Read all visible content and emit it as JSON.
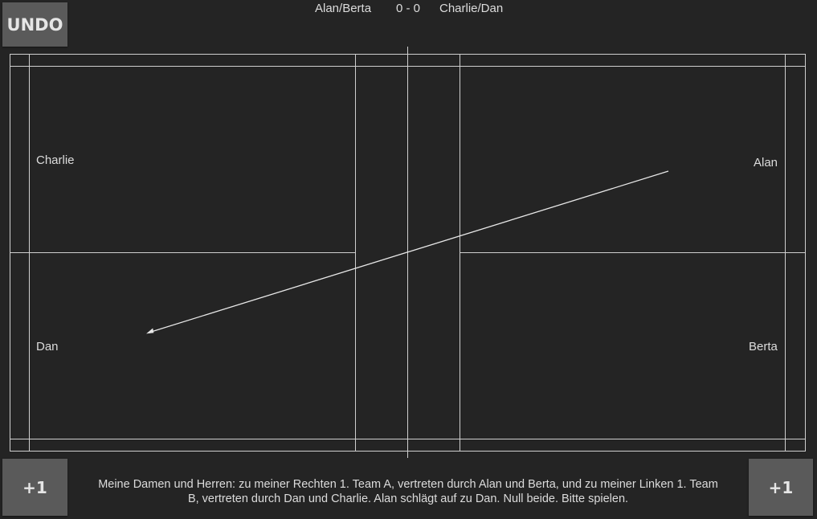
{
  "toolbar": {
    "undo_label": "UNDO"
  },
  "scoreboard": {
    "team_a": "Alan/Berta",
    "score": "0 - 0",
    "team_b": "Charlie/Dan"
  },
  "players": {
    "top_left": "Charlie",
    "bottom_left": "Dan",
    "top_right": "Alan",
    "bottom_right": "Berta"
  },
  "scoring": {
    "left_plus_label": "+1",
    "right_plus_label": "+1"
  },
  "announcement": "Meine Damen und Herren: zu meiner Rechten 1. Team A, vertreten durch Alan und Berta, und zu meiner Linken 1. Team B, vertreten durch Dan und Charlie. Alan schlägt auf zu Dan. Null beide. Bitte spielen.",
  "colors": {
    "background": "#242424",
    "button": "#5a5a5a",
    "court_lines": "#cfcfcf",
    "text": "#dcdcdc"
  },
  "serve": {
    "from": "Alan",
    "to": "Dan"
  }
}
